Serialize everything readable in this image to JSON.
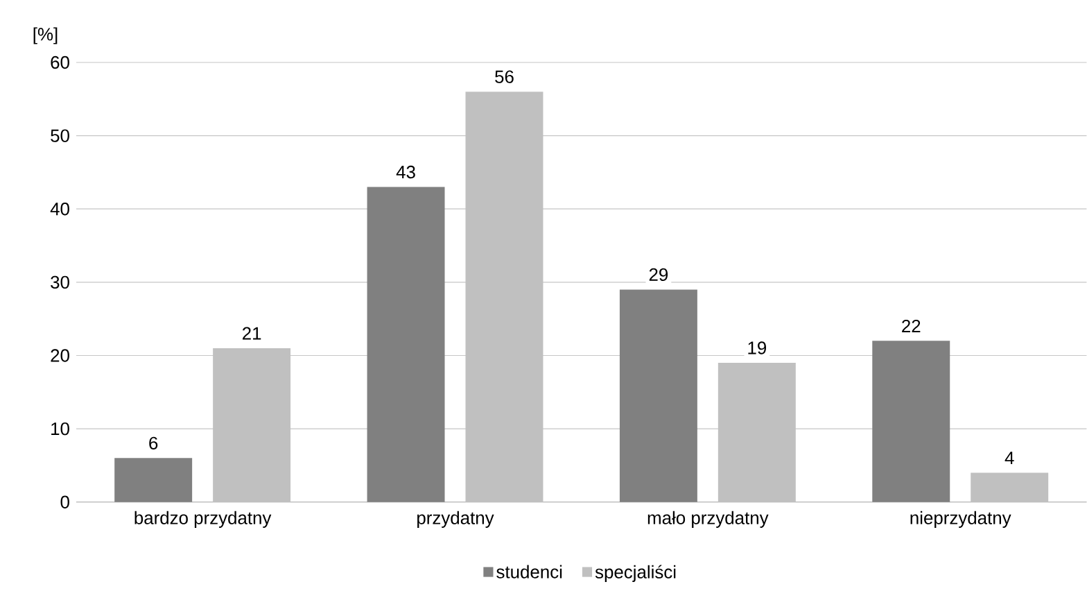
{
  "chart_data": {
    "type": "bar",
    "ylabel": "[%]",
    "categories": [
      "bardzo przydatny",
      "przydatny",
      "mało przydatny",
      "nieprzydatny"
    ],
    "series": [
      {
        "name": "studenci",
        "color": "#808080",
        "values": [
          6,
          43,
          29,
          22
        ]
      },
      {
        "name": "specjaliści",
        "color": "#c0c0c0",
        "values": [
          21,
          56,
          19,
          4
        ]
      }
    ],
    "ylim": [
      0,
      60
    ],
    "yticks": [
      0,
      10,
      20,
      30,
      40,
      50,
      60
    ],
    "grid": "y",
    "legend": "bottom",
    "data_labels": true
  }
}
